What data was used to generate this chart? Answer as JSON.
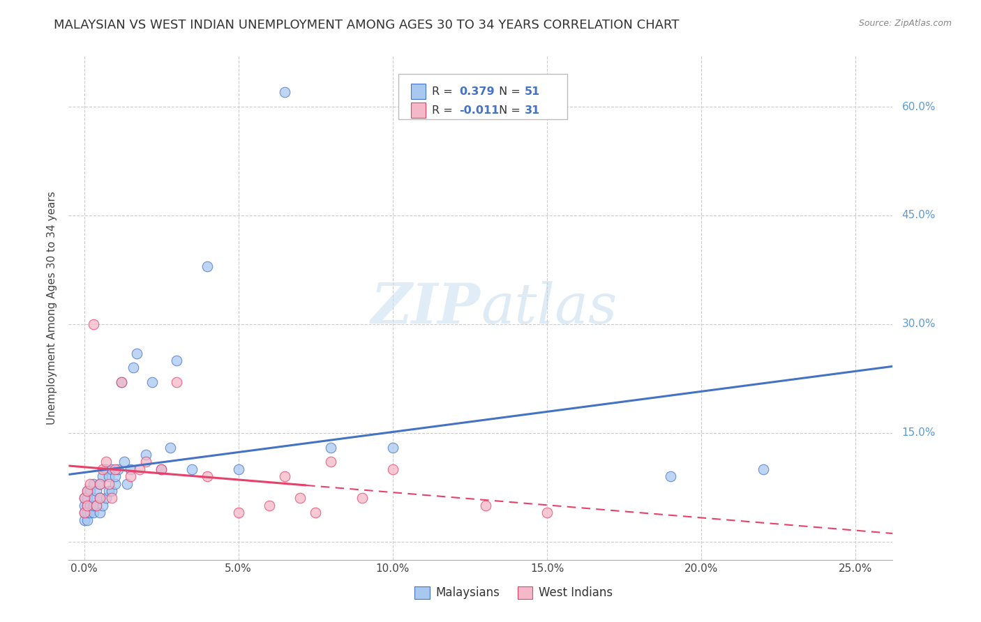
{
  "title": "MALAYSIAN VS WEST INDIAN UNEMPLOYMENT AMONG AGES 30 TO 34 YEARS CORRELATION CHART",
  "source": "Source: ZipAtlas.com",
  "ylabel": "Unemployment Among Ages 30 to 34 years",
  "x_ticks": [
    0.0,
    0.05,
    0.1,
    0.15,
    0.2,
    0.25
  ],
  "x_tick_labels": [
    "0.0%",
    "5.0%",
    "10.0%",
    "15.0%",
    "20.0%",
    "25.0%"
  ],
  "y_ticks": [
    0.0,
    0.15,
    0.3,
    0.45,
    0.6
  ],
  "y_tick_labels": [
    "",
    "15.0%",
    "30.0%",
    "45.0%",
    "60.0%"
  ],
  "xlim": [
    -0.005,
    0.262
  ],
  "ylim": [
    -0.025,
    0.67
  ],
  "malaysian_color": "#a8c8f0",
  "west_indian_color": "#f4b8c8",
  "regression_malaysian_color": "#4472c4",
  "regression_west_indian_color": "#e84068",
  "R_malaysian": 0.379,
  "N_malaysian": 51,
  "R_west_indian": -0.011,
  "N_west_indian": 31,
  "malaysian_x": [
    0.0,
    0.0,
    0.0,
    0.0,
    0.001,
    0.001,
    0.001,
    0.001,
    0.001,
    0.002,
    0.002,
    0.002,
    0.003,
    0.003,
    0.003,
    0.003,
    0.004,
    0.004,
    0.005,
    0.005,
    0.005,
    0.006,
    0.006,
    0.007,
    0.007,
    0.008,
    0.008,
    0.009,
    0.009,
    0.01,
    0.01,
    0.011,
    0.012,
    0.013,
    0.014,
    0.015,
    0.016,
    0.017,
    0.02,
    0.022,
    0.025,
    0.028,
    0.03,
    0.035,
    0.04,
    0.05,
    0.065,
    0.08,
    0.1,
    0.19,
    0.22
  ],
  "malaysian_y": [
    0.03,
    0.04,
    0.05,
    0.06,
    0.03,
    0.04,
    0.05,
    0.06,
    0.07,
    0.04,
    0.05,
    0.07,
    0.04,
    0.05,
    0.06,
    0.08,
    0.05,
    0.07,
    0.04,
    0.06,
    0.08,
    0.05,
    0.09,
    0.06,
    0.1,
    0.07,
    0.09,
    0.07,
    0.1,
    0.08,
    0.09,
    0.1,
    0.22,
    0.11,
    0.08,
    0.1,
    0.24,
    0.26,
    0.12,
    0.22,
    0.1,
    0.13,
    0.25,
    0.1,
    0.38,
    0.1,
    0.62,
    0.13,
    0.13,
    0.09,
    0.1
  ],
  "west_indian_x": [
    0.0,
    0.0,
    0.001,
    0.001,
    0.002,
    0.003,
    0.004,
    0.005,
    0.005,
    0.006,
    0.007,
    0.008,
    0.009,
    0.01,
    0.012,
    0.015,
    0.018,
    0.02,
    0.025,
    0.03,
    0.04,
    0.05,
    0.06,
    0.065,
    0.07,
    0.075,
    0.08,
    0.09,
    0.1,
    0.13,
    0.15
  ],
  "west_indian_y": [
    0.04,
    0.06,
    0.05,
    0.07,
    0.08,
    0.3,
    0.05,
    0.06,
    0.08,
    0.1,
    0.11,
    0.08,
    0.06,
    0.1,
    0.22,
    0.09,
    0.1,
    0.11,
    0.1,
    0.22,
    0.09,
    0.04,
    0.05,
    0.09,
    0.06,
    0.04,
    0.11,
    0.06,
    0.1,
    0.05,
    0.04
  ],
  "watermark_zip": "ZIP",
  "watermark_atlas": "atlas",
  "background_color": "#ffffff",
  "grid_color": "#cccccc",
  "title_fontsize": 13,
  "axis_label_fontsize": 11,
  "tick_fontsize": 11,
  "legend_fontsize": 12
}
